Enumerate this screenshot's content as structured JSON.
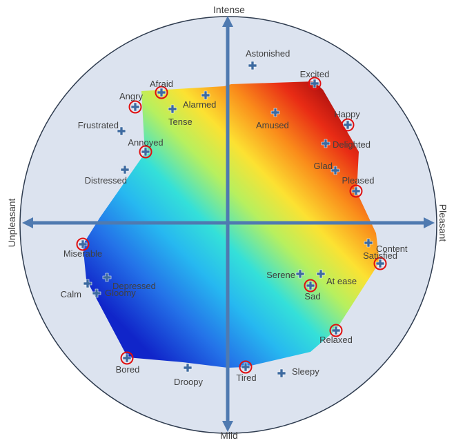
{
  "axes": {
    "top": "Intense",
    "bottom": "Mild",
    "left": "Unpleasant",
    "right": "Pleasant"
  },
  "colors": {
    "circle_fill": "#dce3ef",
    "circle_stroke": "#2f3c4f",
    "axis": "#4f7ab0",
    "marker": "#3d6aa0",
    "highlight_ring": "#e01010"
  },
  "emotions": [
    {
      "label": "Astonished",
      "highlighted": false
    },
    {
      "label": "Excited",
      "highlighted": true
    },
    {
      "label": "Afraid",
      "highlighted": true
    },
    {
      "label": "Angry",
      "highlighted": true
    },
    {
      "label": "Alarmed",
      "highlighted": false
    },
    {
      "label": "Tense",
      "highlighted": false
    },
    {
      "label": "Amused",
      "highlighted": false
    },
    {
      "label": "Happy",
      "highlighted": true
    },
    {
      "label": "Frustrated",
      "highlighted": false
    },
    {
      "label": "Delighted",
      "highlighted": false
    },
    {
      "label": "Annoyed",
      "highlighted": true
    },
    {
      "label": "Distressed",
      "highlighted": false
    },
    {
      "label": "Glad",
      "highlighted": false
    },
    {
      "label": "Pleased",
      "highlighted": true
    },
    {
      "label": "Content",
      "highlighted": false
    },
    {
      "label": "Miserable",
      "highlighted": true
    },
    {
      "label": "Satisfied",
      "highlighted": true
    },
    {
      "label": "Serene",
      "highlighted": false
    },
    {
      "label": "At ease",
      "highlighted": false
    },
    {
      "label": "Sad",
      "highlighted": true
    },
    {
      "label": "Depressed",
      "highlighted": false
    },
    {
      "label": "Calm",
      "highlighted": false
    },
    {
      "label": "Gloomy",
      "highlighted": false
    },
    {
      "label": "Relaxed",
      "highlighted": true
    },
    {
      "label": "Bored",
      "highlighted": true
    },
    {
      "label": "Droopy",
      "highlighted": false
    },
    {
      "label": "Tired",
      "highlighted": true
    },
    {
      "label": "Sleepy",
      "highlighted": false
    }
  ]
}
